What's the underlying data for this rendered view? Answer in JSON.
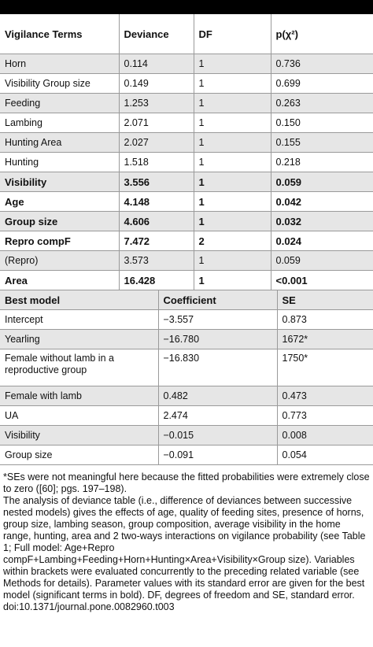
{
  "table1": {
    "headers": [
      "Vigilance Terms",
      "Deviance",
      "DF",
      "p(χ²)"
    ],
    "rows": [
      {
        "term": "Horn",
        "deviance": "0.114",
        "df": "1",
        "p": "0.736",
        "bold": false
      },
      {
        "term": "Visibility Group size",
        "deviance": "0.149",
        "df": "1",
        "p": "0.699",
        "bold": false
      },
      {
        "term": "Feeding",
        "deviance": "1.253",
        "df": "1",
        "p": "0.263",
        "bold": false
      },
      {
        "term": "Lambing",
        "deviance": "2.071",
        "df": "1",
        "p": "0.150",
        "bold": false
      },
      {
        "term": "Hunting Area",
        "deviance": "2.027",
        "df": "1",
        "p": "0.155",
        "bold": false
      },
      {
        "term": "Hunting",
        "deviance": "1.518",
        "df": "1",
        "p": "0.218",
        "bold": false
      },
      {
        "term": "Visibility",
        "deviance": "3.556",
        "df": "1",
        "p": "0.059",
        "bold": true
      },
      {
        "term": "Age",
        "deviance": "4.148",
        "df": "1",
        "p": "0.042",
        "bold": true
      },
      {
        "term": "Group size",
        "deviance": "4.606",
        "df": "1",
        "p": "0.032",
        "bold": true
      },
      {
        "term": "Repro compF",
        "deviance": "7.472",
        "df": "2",
        "p": "0.024",
        "bold": true
      },
      {
        "term": "(Repro)",
        "deviance": "3.573",
        "df": "1",
        "p": "0.059",
        "bold": false
      },
      {
        "term": "Area",
        "deviance": "16.428",
        "df": "1",
        "p": "<0.001",
        "bold": true
      }
    ]
  },
  "table2": {
    "headers": [
      "Best model",
      "Coefficient",
      "SE"
    ],
    "rows": [
      {
        "term": "Intercept",
        "coef": "−3.557",
        "se": "0.873"
      },
      {
        "term": "Yearling",
        "coef": "−16.780",
        "se": "1672*"
      },
      {
        "term": "Female without lamb in a reproductive group",
        "coef": "−16.830",
        "se": "1750*"
      },
      {
        "term": "Female with lamb",
        "coef": "0.482",
        "se": "0.473"
      },
      {
        "term": "UA",
        "coef": "2.474",
        "se": "0.773"
      },
      {
        "term": "Visibility",
        "coef": "−0.015",
        "se": "0.008"
      },
      {
        "term": "Group size",
        "coef": "−0.091",
        "se": "0.054"
      }
    ]
  },
  "notes": {
    "footnote": "*SEs were not meaningful here because the fitted probabilities were extremely close to zero ([60]; pgs. 197–198).",
    "description": "The analysis of deviance table (i.e., difference of deviances between successive nested models) gives the effects of age, quality of feeding sites, presence of horns, group size, lambing season, group composition, average visibility in the home range, hunting, area and 2 two-ways interactions on vigilance probability (see Table 1; Full model: Age+Repro compF+Lambing+Feeding+Horn+Hunting×Area+Visibility×Group size). Variables within brackets were evaluated concurrently to the preceding related variable (see Methods for details). Parameter values with its standard error are given for the best model (significant terms in bold). DF, degrees of freedom and SE, standard error.",
    "doi": "doi:10.1371/journal.pone.0082960.t003"
  }
}
